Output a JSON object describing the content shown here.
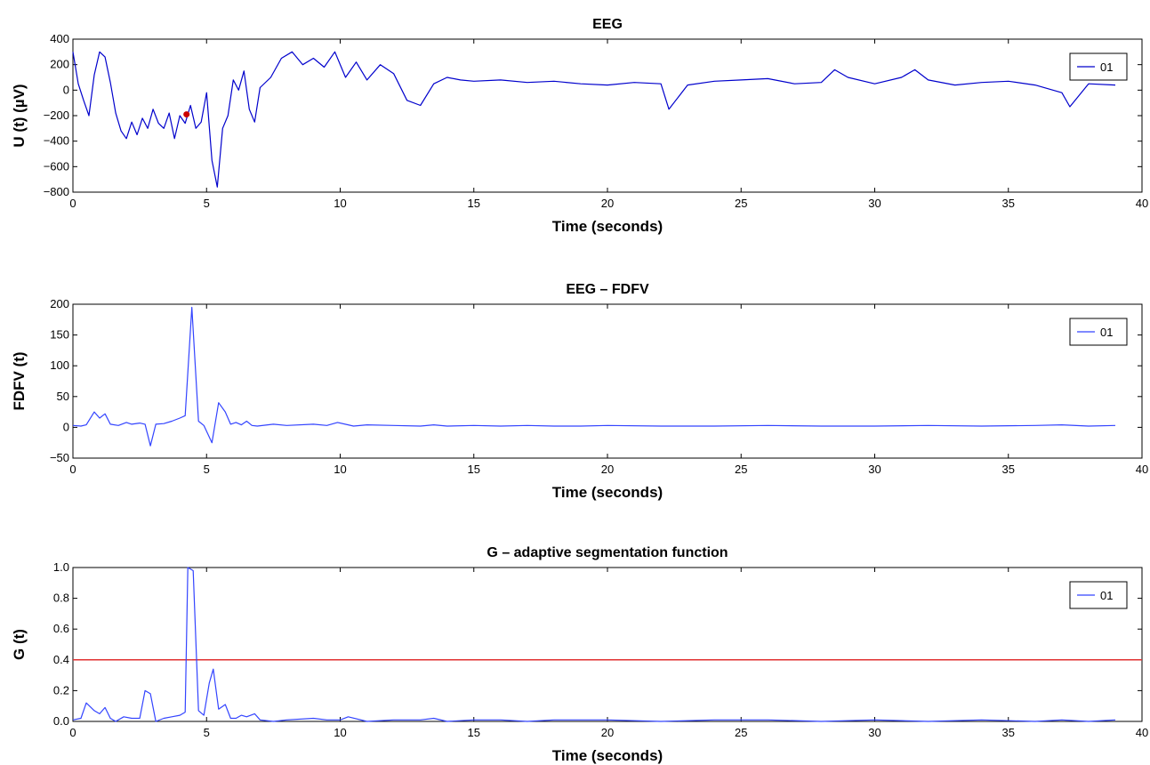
{
  "chart_data": [
    {
      "type": "line",
      "title": "EEG",
      "xlabel": "Time (seconds)",
      "ylabel": "U (t) (µV)",
      "xlim": [
        0,
        40
      ],
      "ylim": [
        -800,
        400
      ],
      "xticks": [
        "0",
        "5",
        "10",
        "15",
        "20",
        "25",
        "30",
        "35",
        "40"
      ],
      "yticks": [
        "−800",
        "−600",
        "−400",
        "−200",
        "0",
        "200",
        "400"
      ],
      "legend_position": "top-right",
      "series": [
        {
          "name": "01",
          "color": "#0000cc",
          "x": [
            0,
            0.2,
            0.4,
            0.6,
            0.8,
            1.0,
            1.2,
            1.4,
            1.6,
            1.8,
            2.0,
            2.2,
            2.4,
            2.6,
            2.8,
            3.0,
            3.2,
            3.4,
            3.6,
            3.8,
            4.0,
            4.2,
            4.4,
            4.6,
            4.8,
            5.0,
            5.2,
            5.4,
            5.6,
            5.8,
            6.0,
            6.2,
            6.4,
            6.6,
            6.8,
            7.0,
            7.4,
            7.8,
            8.2,
            8.6,
            9.0,
            9.4,
            9.8,
            10.2,
            10.6,
            11.0,
            11.5,
            12.0,
            12.5,
            13.0,
            13.5,
            14.0,
            14.5,
            15.0,
            16.0,
            17.0,
            18.0,
            19.0,
            20.0,
            21.0,
            22.0,
            22.3,
            23.0,
            24.0,
            25.0,
            26.0,
            27.0,
            28.0,
            28.5,
            29.0,
            30.0,
            31.0,
            31.5,
            32.0,
            33.0,
            34.0,
            35.0,
            36.0,
            37.0,
            37.3,
            38.0,
            39.0
          ],
          "values": [
            300,
            50,
            -80,
            -200,
            120,
            300,
            260,
            60,
            -180,
            -320,
            -380,
            -250,
            -350,
            -220,
            -300,
            -150,
            -260,
            -300,
            -180,
            -380,
            -200,
            -260,
            -120,
            -300,
            -250,
            -20,
            -550,
            -760,
            -300,
            -200,
            80,
            0,
            150,
            -150,
            -250,
            20,
            100,
            250,
            300,
            200,
            250,
            180,
            300,
            100,
            220,
            80,
            200,
            130,
            -80,
            -120,
            50,
            100,
            80,
            70,
            80,
            60,
            70,
            50,
            40,
            60,
            50,
            -150,
            40,
            70,
            80,
            90,
            50,
            60,
            160,
            100,
            50,
            100,
            160,
            80,
            40,
            60,
            70,
            40,
            -20,
            -130,
            50,
            40
          ]
        },
        {
          "name": "marker",
          "color": "#cc0000",
          "x": [
            4.25
          ],
          "values": [
            -190
          ]
        }
      ]
    },
    {
      "type": "line",
      "title": "EEG – FDFV",
      "xlabel": "Time (seconds)",
      "ylabel": "FDFV (t)",
      "xlim": [
        0,
        40
      ],
      "ylim": [
        -50,
        200
      ],
      "xticks": [
        "0",
        "5",
        "10",
        "15",
        "20",
        "25",
        "30",
        "35",
        "40"
      ],
      "yticks": [
        "−50",
        "0",
        "50",
        "100",
        "150",
        "200"
      ],
      "legend_position": "top-right",
      "series": [
        {
          "name": "01",
          "color": "#3344ff",
          "x": [
            0,
            0.3,
            0.5,
            0.8,
            1.0,
            1.2,
            1.4,
            1.7,
            2.0,
            2.2,
            2.5,
            2.7,
            2.9,
            3.1,
            3.4,
            3.7,
            4.0,
            4.2,
            4.45,
            4.7,
            4.9,
            5.2,
            5.45,
            5.7,
            5.9,
            6.1,
            6.3,
            6.5,
            6.7,
            6.9,
            7.5,
            8.0,
            9.0,
            9.5,
            9.9,
            10.5,
            11.0,
            12.0,
            13.0,
            13.5,
            14.0,
            15.0,
            16.0,
            17.0,
            18.0,
            19.0,
            20.0,
            22.0,
            24.0,
            26.0,
            28.0,
            30.0,
            32.0,
            34.0,
            36.0,
            37.0,
            38.0,
            39.0
          ],
          "values": [
            3,
            2,
            4,
            25,
            15,
            22,
            5,
            3,
            8,
            5,
            7,
            5,
            -30,
            5,
            6,
            10,
            15,
            19,
            195,
            10,
            3,
            -25,
            40,
            25,
            5,
            8,
            4,
            10,
            3,
            2,
            5,
            3,
            5,
            3,
            8,
            2,
            4,
            3,
            2,
            4,
            2,
            3,
            2,
            3,
            2,
            2,
            3,
            2,
            2,
            3,
            2,
            2,
            3,
            2,
            3,
            4,
            2,
            3
          ]
        }
      ]
    },
    {
      "type": "line",
      "title": "G – adaptive segmentation function",
      "xlabel": "Time (seconds)",
      "ylabel": "G (t)",
      "xlim": [
        0,
        40
      ],
      "ylim": [
        0,
        1
      ],
      "xticks": [
        "0",
        "5",
        "10",
        "15",
        "20",
        "25",
        "30",
        "35",
        "40"
      ],
      "yticks": [
        "0.0",
        "0.2",
        "0.4",
        "0.6",
        "0.8",
        "1.0"
      ],
      "legend_position": "top-right",
      "threshold": {
        "value": 0.4,
        "color": "#e03030"
      },
      "series": [
        {
          "name": "01",
          "color": "#3344ff",
          "x": [
            0,
            0.3,
            0.5,
            0.8,
            1.0,
            1.2,
            1.4,
            1.6,
            1.9,
            2.2,
            2.5,
            2.7,
            2.9,
            3.1,
            3.4,
            3.7,
            4.0,
            4.2,
            4.3,
            4.5,
            4.7,
            4.9,
            5.1,
            5.25,
            5.45,
            5.7,
            5.9,
            6.1,
            6.3,
            6.5,
            6.8,
            7.0,
            7.5,
            8.0,
            9.0,
            9.5,
            10.0,
            10.3,
            11.0,
            12.0,
            13.0,
            13.5,
            14.0,
            15.0,
            16.0,
            17.0,
            18.0,
            20.0,
            22.0,
            24.0,
            26.0,
            28.0,
            30.0,
            32.0,
            34.0,
            36.0,
            37.0,
            38.0,
            39.0
          ],
          "values": [
            0.01,
            0.02,
            0.12,
            0.07,
            0.05,
            0.09,
            0.02,
            0.0,
            0.03,
            0.02,
            0.02,
            0.2,
            0.18,
            0.0,
            0.02,
            0.03,
            0.04,
            0.06,
            1.0,
            0.98,
            0.07,
            0.04,
            0.25,
            0.34,
            0.08,
            0.11,
            0.02,
            0.02,
            0.04,
            0.03,
            0.05,
            0.01,
            0.0,
            0.01,
            0.02,
            0.01,
            0.01,
            0.03,
            0.0,
            0.01,
            0.01,
            0.02,
            0.0,
            0.01,
            0.01,
            0.0,
            0.01,
            0.01,
            0.0,
            0.01,
            0.01,
            0.0,
            0.01,
            0.0,
            0.01,
            0.0,
            0.01,
            0.0,
            0.01
          ]
        }
      ]
    }
  ]
}
